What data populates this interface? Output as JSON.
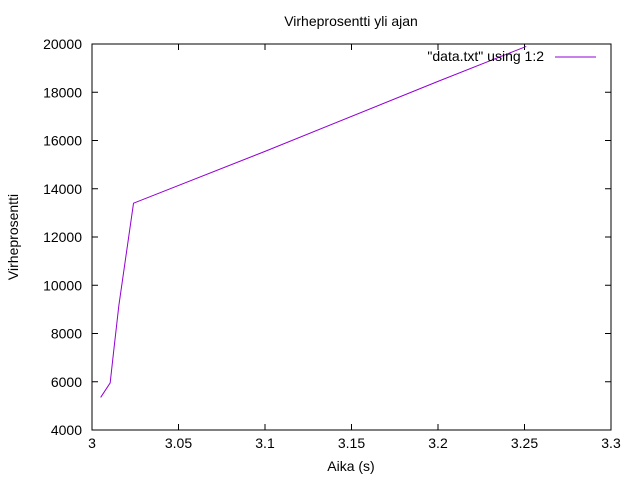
{
  "chart_data": {
    "type": "line",
    "title": "Virheprosentti yli ajan",
    "xlabel": "Aika (s)",
    "ylabel": "Virheprosentti",
    "xlim": [
      3.0,
      3.3
    ],
    "ylim": [
      4000,
      20000
    ],
    "x_ticks": [
      3.0,
      3.05,
      3.1,
      3.15,
      3.2,
      3.25,
      3.3
    ],
    "x_tick_labels": [
      "3",
      "3.05",
      "3.1",
      "3.15",
      "3.2",
      "3.25",
      "3.3"
    ],
    "y_ticks": [
      4000,
      6000,
      8000,
      10000,
      12000,
      14000,
      16000,
      18000,
      20000
    ],
    "y_tick_labels": [
      "4000",
      "6000",
      "8000",
      "10000",
      "12000",
      "14000",
      "16000",
      "18000",
      "20000"
    ],
    "legend_position": "top-right",
    "grid": false,
    "series": [
      {
        "name": "\"data.txt\" using 1:2",
        "color": "#9400d3",
        "x": [
          3.005,
          3.0105,
          3.0125,
          3.0155,
          3.024,
          3.1,
          3.2,
          3.251
        ],
        "y": [
          5350,
          5950,
          7250,
          9150,
          13400,
          15550,
          18450,
          19900
        ]
      }
    ]
  }
}
